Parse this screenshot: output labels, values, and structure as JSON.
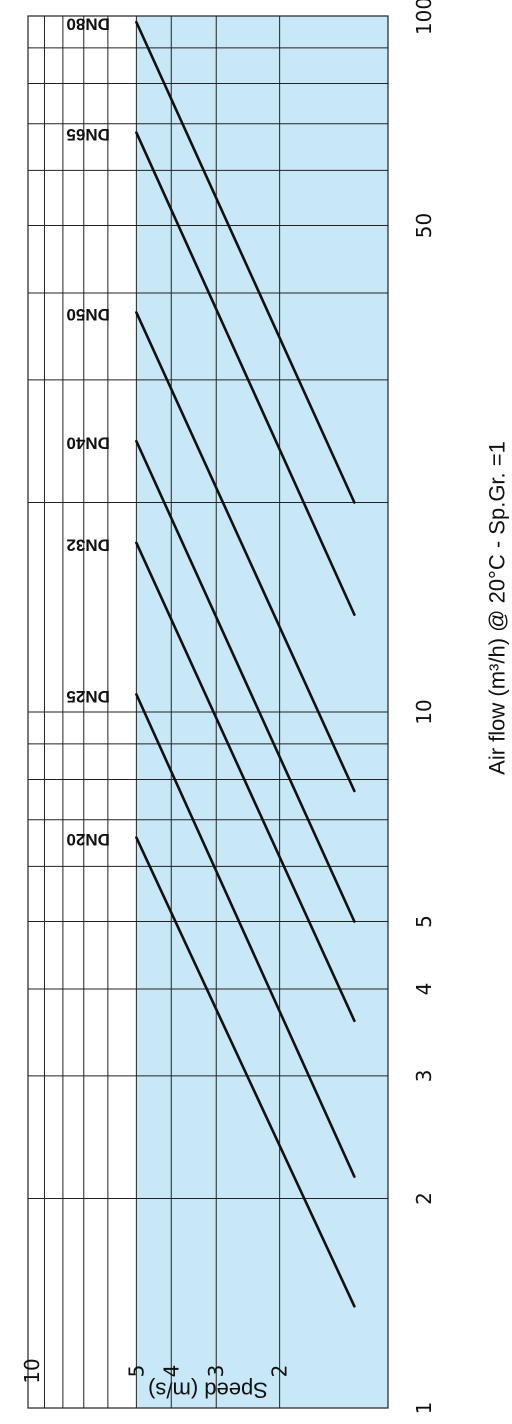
{
  "chart_data": {
    "type": "line",
    "orientation": "rotated-90",
    "x_scale": "log",
    "y_scale": "log",
    "xlim": [
      1,
      100
    ],
    "ylim": [
      1,
      10
    ],
    "x_ticks": [
      {
        "value": 1,
        "label": "1"
      },
      {
        "value": 2,
        "label": "2"
      },
      {
        "value": 3,
        "label": "3"
      },
      {
        "value": 4,
        "label": "4"
      },
      {
        "value": 5,
        "label": "5"
      },
      {
        "value": 10,
        "label": "10"
      },
      {
        "value": 50,
        "label": "50"
      },
      {
        "value": 100,
        "label": "100"
      }
    ],
    "y_ticks": [
      {
        "value": 2,
        "label": "2"
      },
      {
        "value": 3,
        "label": "3"
      },
      {
        "value": 4,
        "label": "4"
      },
      {
        "value": 5,
        "label": "5"
      },
      {
        "value": 10,
        "label": "10"
      }
    ],
    "x_grid": [
      1,
      2,
      3,
      4,
      5,
      6,
      7,
      8,
      9,
      10,
      20,
      30,
      40,
      50,
      60,
      70,
      80,
      90,
      100
    ],
    "y_grid": [
      1,
      2,
      3,
      4,
      5,
      6,
      7,
      8,
      9,
      10
    ],
    "shaded_band": {
      "y_from": 1,
      "y_to": 5,
      "color": "#c8e8f8"
    },
    "xlabel": "Air flow (m³/h)  @ 20°C - Sp.Gr. =1",
    "ylabel": "Speed (m/s)",
    "grid": true,
    "line_color": "#111111",
    "series": [
      {
        "name": "DN20",
        "x": [
          1.4,
          6.6
        ],
        "y": [
          1.24,
          5.0
        ]
      },
      {
        "name": "DN25",
        "x": [
          2.15,
          10.6
        ],
        "y": [
          1.24,
          5.0
        ]
      },
      {
        "name": "DN32",
        "x": [
          3.6,
          17.5
        ],
        "y": [
          1.24,
          5.0
        ]
      },
      {
        "name": "DN40",
        "x": [
          5.0,
          24.5
        ],
        "y": [
          1.24,
          5.0
        ]
      },
      {
        "name": "DN50",
        "x": [
          7.7,
          37.5
        ],
        "y": [
          1.24,
          5.0
        ]
      },
      {
        "name": "DN65",
        "x": [
          13.8,
          68.0
        ],
        "y": [
          1.24,
          5.0
        ]
      },
      {
        "name": "DN80",
        "x": [
          20.0,
          98.0
        ],
        "y": [
          1.24,
          5.0
        ]
      }
    ]
  }
}
